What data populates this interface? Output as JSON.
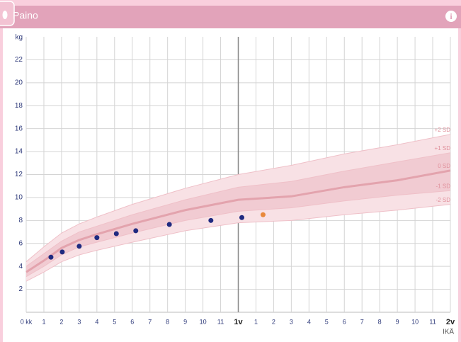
{
  "header": {
    "title": "Paino"
  },
  "chart_data": {
    "type": "growth",
    "y_label": "kg",
    "x_label": "IKÄ",
    "xlim": [
      0,
      24
    ],
    "ylim": [
      0,
      24
    ],
    "yticks": [
      2,
      4,
      6,
      8,
      10,
      12,
      14,
      16,
      18,
      20,
      22
    ],
    "xticks": [
      {
        "value": 0,
        "label": "0 kk"
      },
      1,
      2,
      3,
      4,
      5,
      6,
      7,
      8,
      9,
      10,
      11,
      {
        "value": 12,
        "label": "1v"
      },
      {
        "value": 13,
        "label": "1"
      },
      {
        "value": 14,
        "label": "2"
      },
      {
        "value": 15,
        "label": "3"
      },
      {
        "value": 16,
        "label": "4"
      },
      {
        "value": 17,
        "label": "5"
      },
      {
        "value": 18,
        "label": "6"
      },
      {
        "value": 19,
        "label": "7"
      },
      {
        "value": 20,
        "label": "8"
      },
      {
        "value": 21,
        "label": "9"
      },
      {
        "value": 22,
        "label": "10"
      },
      {
        "value": 23,
        "label": "11"
      },
      {
        "value": 24,
        "label": "2v"
      }
    ],
    "grid": true,
    "reference": {
      "x": [
        0,
        1,
        2,
        3,
        4,
        6,
        9,
        12,
        15,
        18,
        21,
        24
      ],
      "curves": [
        {
          "name": "+2 SD",
          "values": [
            4.4,
            5.7,
            6.9,
            7.7,
            8.3,
            9.4,
            10.8,
            12.0,
            12.8,
            13.8,
            14.6,
            15.5
          ]
        },
        {
          "name": "+1 SD",
          "values": [
            4.0,
            5.1,
            6.2,
            7.0,
            7.5,
            8.5,
            9.8,
            10.9,
            11.4,
            12.3,
            13.1,
            13.9
          ]
        },
        {
          "name": "0 SD",
          "values": [
            3.5,
            4.5,
            5.6,
            6.3,
            6.8,
            7.7,
            8.9,
            9.8,
            10.1,
            10.9,
            11.5,
            12.35
          ]
        },
        {
          "name": "-1 SD",
          "values": [
            3.1,
            4.0,
            5.0,
            5.7,
            6.1,
            6.9,
            8.0,
            8.8,
            9.1,
            9.7,
            10.2,
            10.6
          ]
        },
        {
          "name": "-2 SD",
          "values": [
            2.7,
            3.5,
            4.4,
            5.0,
            5.4,
            6.1,
            7.1,
            7.8,
            8.0,
            8.5,
            8.9,
            9.4
          ]
        }
      ]
    },
    "x": [
      1.4,
      2.04,
      3.0,
      4.0,
      5.1,
      6.2,
      8.1,
      10.45,
      12.2,
      13.4
    ],
    "values": [
      4.8,
      5.25,
      5.75,
      6.5,
      6.85,
      7.1,
      7.65,
      8.0,
      8.25,
      8.5
    ],
    "point_colors": [
      "#1f2a80",
      "#1f2a80",
      "#1f2a80",
      "#1f2a80",
      "#1f2a80",
      "#1f2a80",
      "#1f2a80",
      "#1f2a80",
      "#1f2a80",
      "#e8883a"
    ]
  }
}
